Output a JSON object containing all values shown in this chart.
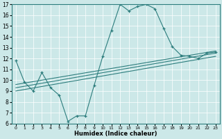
{
  "title": "",
  "xlabel": "Humidex (Indice chaleur)",
  "ylabel": "",
  "bg_color": "#cce8e8",
  "line_color": "#2d7d7d",
  "xlim": [
    -0.5,
    23.5
  ],
  "ylim": [
    6,
    17
  ],
  "xticks": [
    0,
    1,
    2,
    3,
    4,
    5,
    6,
    7,
    8,
    9,
    10,
    11,
    12,
    13,
    14,
    15,
    16,
    17,
    18,
    19,
    20,
    21,
    22,
    23
  ],
  "yticks": [
    6,
    7,
    8,
    9,
    10,
    11,
    12,
    13,
    14,
    15,
    16,
    17
  ],
  "series": {
    "line1_x": [
      0,
      1,
      2,
      3,
      4,
      5,
      6,
      7,
      8,
      9,
      10,
      11,
      12,
      13,
      14,
      15,
      16,
      17,
      18,
      19,
      20,
      21,
      22,
      23
    ],
    "line1_y": [
      11.8,
      9.8,
      9.0,
      10.7,
      9.3,
      8.6,
      6.2,
      6.7,
      6.7,
      9.5,
      12.2,
      14.6,
      17.0,
      16.4,
      16.8,
      17.0,
      16.6,
      14.8,
      13.1,
      12.3,
      12.2,
      12.0,
      12.5,
      12.6
    ],
    "line2_x": [
      0,
      23
    ],
    "line2_y": [
      9.6,
      12.7
    ],
    "line3_x": [
      0,
      23
    ],
    "line3_y": [
      9.3,
      12.5
    ],
    "line4_x": [
      0,
      23
    ],
    "line4_y": [
      9.0,
      12.2
    ]
  }
}
